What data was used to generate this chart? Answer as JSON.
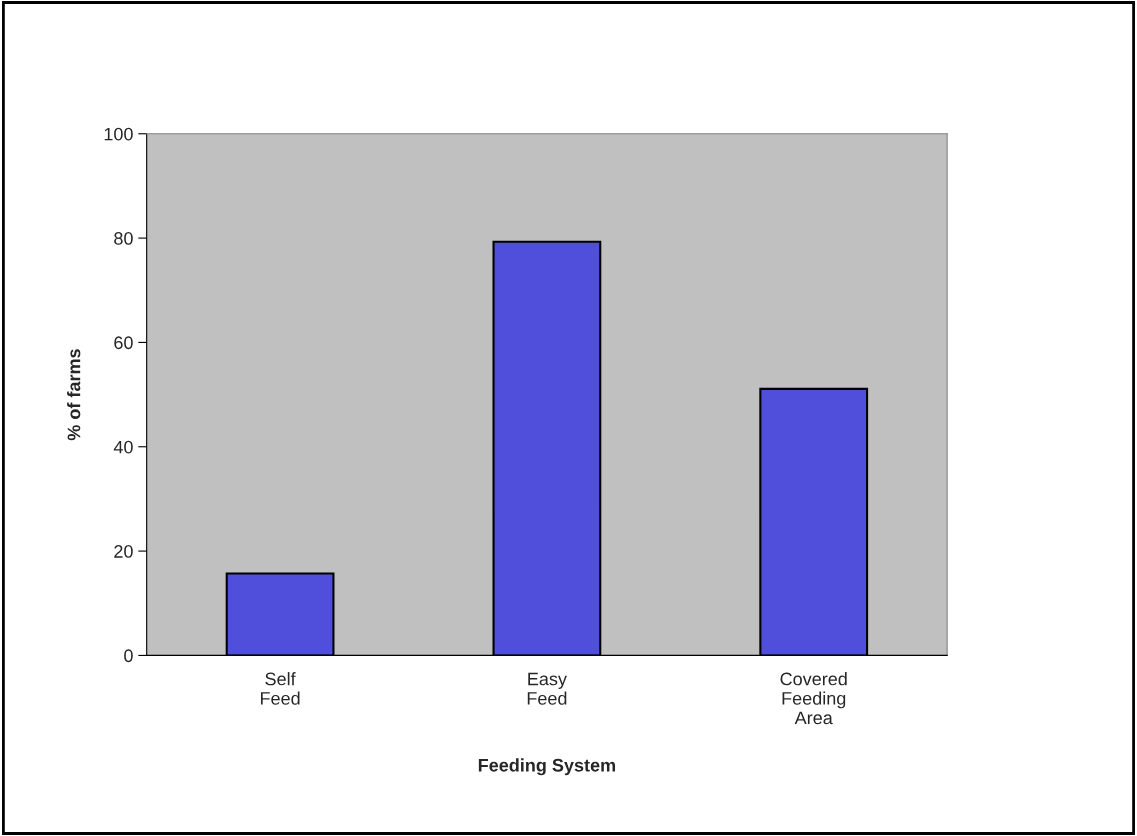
{
  "chart_data": {
    "type": "bar",
    "xlabel": "Feeding System",
    "ylabel": "% of farms",
    "categories": [
      "Self\nFeed",
      "Easy\nFeed",
      "Covered\nFeeding\nArea"
    ],
    "values": [
      15.7,
      79.3,
      51.1
    ],
    "color": "#4f4fdc",
    "ylim": [
      0,
      100
    ],
    "yticks": [
      0,
      20,
      40,
      60,
      80,
      100
    ],
    "grid": false,
    "legend": false
  }
}
